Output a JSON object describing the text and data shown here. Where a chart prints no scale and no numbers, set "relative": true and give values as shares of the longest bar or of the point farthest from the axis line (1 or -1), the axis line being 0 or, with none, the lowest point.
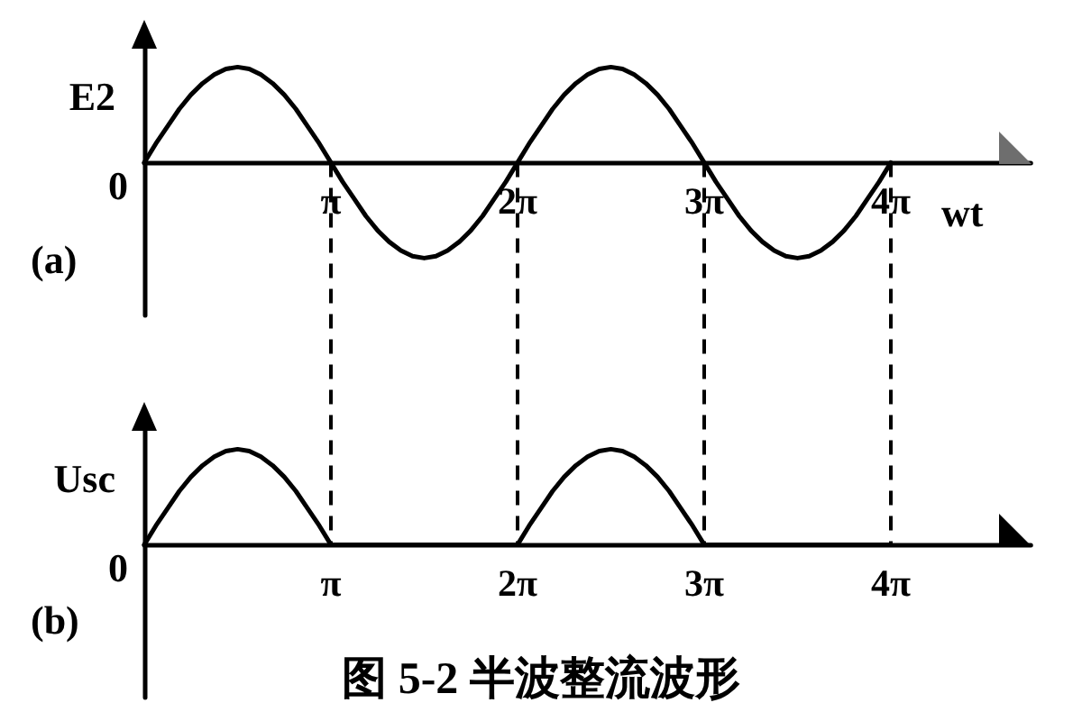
{
  "chart_data": [
    {
      "type": "line",
      "title": "(a)",
      "xlabel": "wt",
      "ylabel": "E2",
      "relative": true,
      "categories": [
        null,
        null,
        null,
        null,
        null,
        null,
        null,
        null,
        null,
        null,
        null,
        null,
        null,
        null,
        null,
        null,
        "π",
        null,
        null,
        null,
        null,
        null,
        null,
        null,
        null,
        null,
        null,
        null,
        null,
        null,
        null,
        null,
        "2π",
        null,
        null,
        null,
        null,
        null,
        null,
        null,
        null,
        null,
        null,
        null,
        null,
        null,
        null,
        null,
        "3π",
        null,
        null,
        null,
        null,
        null,
        null,
        null,
        null,
        null,
        null,
        null,
        null,
        null,
        null,
        null,
        "4π",
        null,
        null,
        null,
        null,
        null,
        null,
        null,
        null,
        null,
        null,
        null,
        null
      ],
      "values": [
        0,
        0.2,
        0.38,
        0.56,
        0.71,
        0.83,
        0.92,
        0.98,
        1,
        0.98,
        0.92,
        0.83,
        0.71,
        0.56,
        0.38,
        0.2,
        0,
        -0.2,
        -0.38,
        -0.56,
        -0.71,
        -0.83,
        -0.92,
        -0.98,
        -1,
        -0.98,
        -0.92,
        -0.83,
        -0.71,
        -0.56,
        -0.38,
        -0.2,
        0,
        0.2,
        0.38,
        0.56,
        0.71,
        0.83,
        0.92,
        0.98,
        1,
        0.98,
        0.92,
        0.83,
        0.71,
        0.56,
        0.38,
        0.2,
        0,
        -0.2,
        -0.38,
        -0.56,
        -0.71,
        -0.83,
        -0.92,
        -0.98,
        -1,
        -0.98,
        -0.92,
        -0.83,
        -0.71,
        -0.56,
        -0.38,
        -0.2,
        0,
        null,
        null,
        null,
        null,
        null,
        null,
        null,
        null,
        null,
        null,
        null,
        null
      ],
      "color": "#000000",
      "marker": "none",
      "annotations": [
        "0"
      ]
    },
    {
      "type": "line",
      "title": "(b)",
      "ylabel": "Usc",
      "relative": true,
      "categories": [
        null,
        null,
        null,
        null,
        null,
        null,
        null,
        null,
        null,
        null,
        null,
        null,
        null,
        null,
        null,
        null,
        "π",
        null,
        null,
        null,
        null,
        null,
        null,
        null,
        null,
        null,
        null,
        null,
        null,
        null,
        null,
        null,
        "2π",
        null,
        null,
        null,
        null,
        null,
        null,
        null,
        null,
        null,
        null,
        null,
        null,
        null,
        null,
        null,
        "3π",
        null,
        null,
        null,
        null,
        null,
        null,
        null,
        null,
        null,
        null,
        null,
        null,
        null,
        null,
        null,
        "4π",
        null,
        null,
        null,
        null,
        null,
        null,
        null,
        null,
        null,
        null,
        null,
        null
      ],
      "values": [
        0,
        0.2,
        0.38,
        0.56,
        0.71,
        0.83,
        0.92,
        0.98,
        1,
        0.98,
        0.92,
        0.83,
        0.71,
        0.56,
        0.38,
        0.2,
        0,
        0,
        0,
        0,
        0,
        0,
        0,
        0,
        0,
        0,
        0,
        0,
        0,
        0,
        0,
        0,
        0,
        0.2,
        0.38,
        0.56,
        0.71,
        0.83,
        0.92,
        0.98,
        1,
        0.98,
        0.92,
        0.83,
        0.71,
        0.56,
        0.38,
        0.2,
        0,
        0,
        0,
        0,
        0,
        0,
        0,
        0,
        0,
        0,
        0,
        0,
        0,
        0,
        0,
        0,
        0,
        null,
        null,
        null,
        null,
        null,
        null,
        null,
        null,
        null,
        null,
        null,
        null
      ],
      "color": "#000000",
      "marker": "none",
      "ref_lines": [
        {
          "axis": "x",
          "value": "π",
          "line_style": "dashed"
        },
        {
          "axis": "x",
          "value": "2π",
          "line_style": "dashed"
        },
        {
          "axis": "x",
          "value": "3π",
          "line_style": "dashed"
        },
        {
          "axis": "x",
          "value": "4π",
          "line_style": "dashed"
        }
      ],
      "annotations": [
        "0",
        "图 5-2 半波整流波形"
      ]
    }
  ]
}
